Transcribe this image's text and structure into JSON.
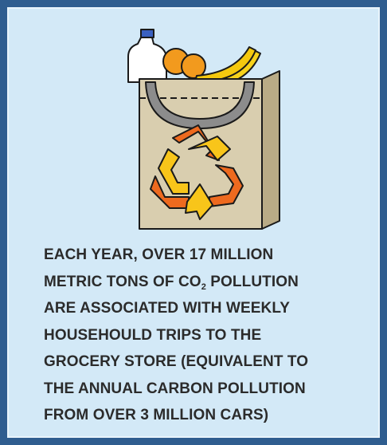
{
  "card": {
    "lines": [
      "EACH YEAR, OVER 17 MILLION",
      {
        "before": "METRIC TONS OF CO",
        "subscript": "2",
        "after": " POLLUTION"
      },
      "ARE ASSOCIATED WITH WEEKLY",
      "HOUSEHOULD TRIPS TO THE",
      "GROCERY STORE (EQUIVALENT TO",
      "THE ANNUAL CARBON POLLUTION",
      "FROM OVER 3 MILLION CARS)"
    ]
  }
}
